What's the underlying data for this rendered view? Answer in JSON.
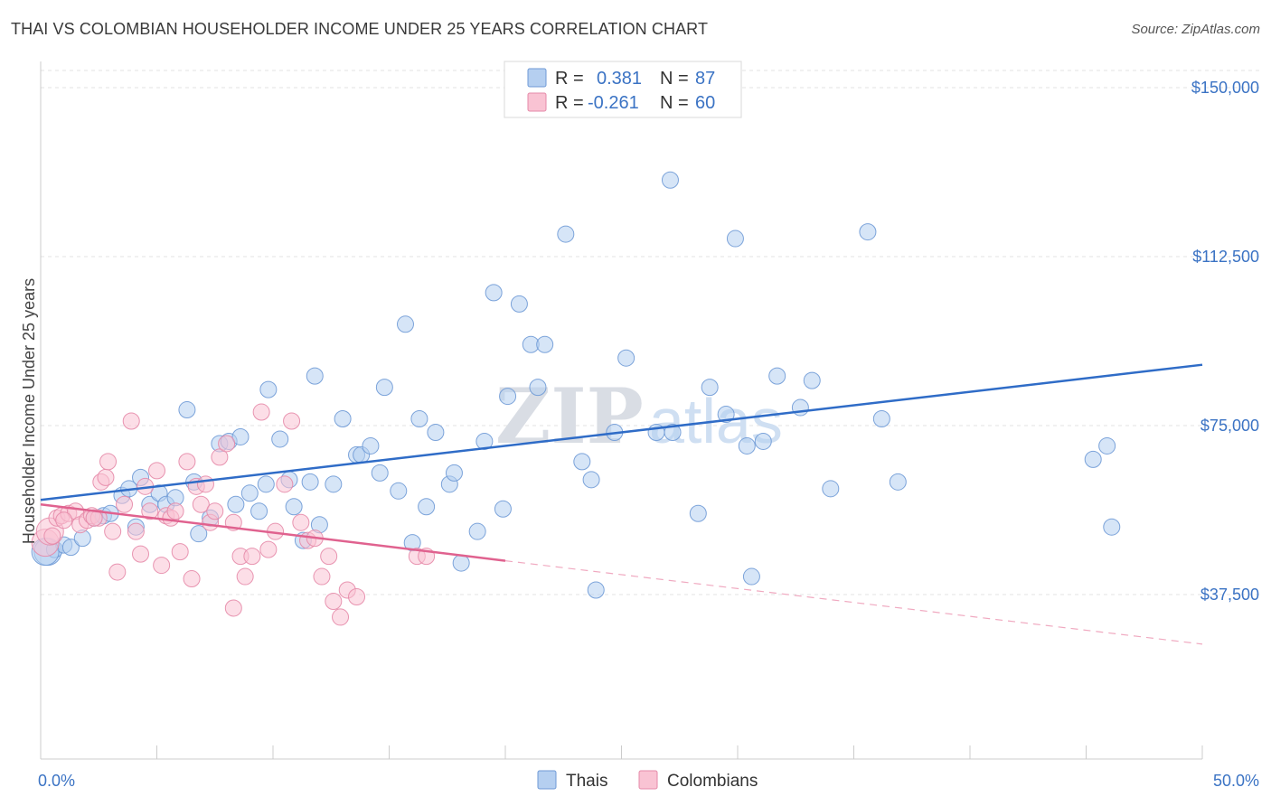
{
  "title": "THAI VS COLOMBIAN HOUSEHOLDER INCOME UNDER 25 YEARS CORRELATION CHART",
  "source": "Source: ZipAtlas.com",
  "watermark": {
    "zip": "ZIP",
    "atlas": "atlas"
  },
  "legend": {
    "r_label": "R =",
    "n_label": "N =",
    "rows": [
      {
        "r": "0.381",
        "n": "87",
        "color": "#b5cff0",
        "stroke": "#6f9ad6"
      },
      {
        "r": "-0.261",
        "n": "60",
        "color": "#f9c3d3",
        "stroke": "#e58aa8"
      }
    ]
  },
  "bottom_legend": [
    "Thais",
    "Colombians"
  ],
  "chart_data": {
    "type": "scatter",
    "title": "THAI VS COLOMBIAN HOUSEHOLDER INCOME UNDER 25 YEARS CORRELATION CHART",
    "xlabel": "",
    "ylabel": "Householder Income Under 25 years",
    "xlim": [
      0,
      50
    ],
    "ylim": [
      0,
      155000
    ],
    "x_tick_labels": [
      "0.0%",
      "50.0%"
    ],
    "y_ticks": [
      37500,
      75000,
      112500,
      150000
    ],
    "y_tick_labels": [
      "$37,500",
      "$75,000",
      "$112,500",
      "$150,000"
    ],
    "grid": true,
    "legend_position": "top-center",
    "series": [
      {
        "name": "Thais",
        "color": "#6f9ad6",
        "fill": "#b5cff0",
        "trend": {
          "x0": 0,
          "y0": 58500,
          "x1": 50,
          "y1": 88500
        },
        "points": [
          [
            0.3,
            47000
          ],
          [
            0.6,
            47500
          ],
          [
            1.0,
            48500
          ],
          [
            1.3,
            48000
          ],
          [
            1.8,
            50000
          ],
          [
            2.3,
            54500
          ],
          [
            2.7,
            55000
          ],
          [
            3.0,
            55500
          ],
          [
            3.5,
            59500
          ],
          [
            3.8,
            61000
          ],
          [
            4.1,
            52500
          ],
          [
            4.3,
            63500
          ],
          [
            4.7,
            57500
          ],
          [
            5.1,
            60000
          ],
          [
            5.4,
            57500
          ],
          [
            5.8,
            59000
          ],
          [
            6.3,
            78500
          ],
          [
            6.6,
            62500
          ],
          [
            6.8,
            51000
          ],
          [
            7.3,
            54500
          ],
          [
            7.7,
            71000
          ],
          [
            8.1,
            71500
          ],
          [
            8.4,
            57500
          ],
          [
            8.6,
            72500
          ],
          [
            9.0,
            60000
          ],
          [
            9.4,
            56000
          ],
          [
            9.7,
            62000
          ],
          [
            9.8,
            83000
          ],
          [
            10.3,
            72000
          ],
          [
            10.7,
            63000
          ],
          [
            10.9,
            57000
          ],
          [
            11.3,
            49500
          ],
          [
            11.6,
            62500
          ],
          [
            11.8,
            86000
          ],
          [
            12.0,
            53000
          ],
          [
            12.6,
            62000
          ],
          [
            13.0,
            76500
          ],
          [
            13.6,
            68500
          ],
          [
            13.8,
            68500
          ],
          [
            14.2,
            70500
          ],
          [
            14.6,
            64500
          ],
          [
            14.8,
            83500
          ],
          [
            15.4,
            60500
          ],
          [
            15.7,
            97500
          ],
          [
            16.0,
            49000
          ],
          [
            16.3,
            76500
          ],
          [
            16.6,
            57000
          ],
          [
            17.0,
            73500
          ],
          [
            17.6,
            62000
          ],
          [
            17.8,
            64500
          ],
          [
            18.1,
            44500
          ],
          [
            18.8,
            51500
          ],
          [
            19.1,
            71500
          ],
          [
            19.5,
            104500
          ],
          [
            19.9,
            56500
          ],
          [
            20.1,
            81500
          ],
          [
            20.6,
            102000
          ],
          [
            21.1,
            93000
          ],
          [
            21.4,
            83500
          ],
          [
            21.7,
            93000
          ],
          [
            22.6,
            117500
          ],
          [
            23.3,
            67000
          ],
          [
            23.7,
            63000
          ],
          [
            23.9,
            38500
          ],
          [
            24.7,
            73500
          ],
          [
            25.2,
            90000
          ],
          [
            26.5,
            73500
          ],
          [
            27.1,
            129500
          ],
          [
            27.2,
            73500
          ],
          [
            28.3,
            55500
          ],
          [
            28.8,
            83500
          ],
          [
            29.5,
            77500
          ],
          [
            29.9,
            116500
          ],
          [
            30.4,
            70500
          ],
          [
            30.6,
            41500
          ],
          [
            31.1,
            71500
          ],
          [
            31.7,
            86000
          ],
          [
            32.7,
            79000
          ],
          [
            33.2,
            85000
          ],
          [
            34.0,
            61000
          ],
          [
            35.6,
            118000
          ],
          [
            36.2,
            76500
          ],
          [
            36.9,
            62500
          ],
          [
            45.3,
            67500
          ],
          [
            45.9,
            70500
          ],
          [
            46.1,
            52500
          ],
          [
            0.2,
            47000
          ]
        ]
      },
      {
        "name": "Colombians",
        "color": "#e58aa8",
        "fill": "#f9c3d3",
        "trend": {
          "x0": 0,
          "y0": 57500,
          "x1": 20,
          "y1": 45000
        },
        "trend_dashed": {
          "x0": 20,
          "y0": 45000,
          "x1": 50,
          "y1": 26500
        },
        "points": [
          [
            0.2,
            49000
          ],
          [
            0.4,
            51500
          ],
          [
            0.7,
            54500
          ],
          [
            0.9,
            55000
          ],
          [
            1.2,
            55500
          ],
          [
            1.5,
            56000
          ],
          [
            1.7,
            53000
          ],
          [
            2.0,
            54000
          ],
          [
            2.2,
            55000
          ],
          [
            2.5,
            54500
          ],
          [
            2.6,
            62500
          ],
          [
            2.8,
            63500
          ],
          [
            2.9,
            67000
          ],
          [
            3.1,
            51500
          ],
          [
            3.3,
            42500
          ],
          [
            3.6,
            57500
          ],
          [
            3.9,
            76000
          ],
          [
            4.1,
            51500
          ],
          [
            4.3,
            46500
          ],
          [
            4.5,
            61500
          ],
          [
            4.7,
            56000
          ],
          [
            5.0,
            65000
          ],
          [
            5.2,
            44000
          ],
          [
            5.4,
            55000
          ],
          [
            5.6,
            54500
          ],
          [
            5.8,
            56000
          ],
          [
            6.0,
            47000
          ],
          [
            6.3,
            67000
          ],
          [
            6.5,
            41000
          ],
          [
            6.7,
            61500
          ],
          [
            6.9,
            57500
          ],
          [
            7.1,
            62000
          ],
          [
            7.3,
            53500
          ],
          [
            7.5,
            56000
          ],
          [
            7.7,
            68000
          ],
          [
            8.0,
            71000
          ],
          [
            8.3,
            53500
          ],
          [
            8.6,
            46000
          ],
          [
            8.8,
            41500
          ],
          [
            9.1,
            46000
          ],
          [
            9.5,
            78000
          ],
          [
            9.8,
            47500
          ],
          [
            10.1,
            51500
          ],
          [
            10.5,
            62000
          ],
          [
            10.8,
            76000
          ],
          [
            11.2,
            53500
          ],
          [
            11.5,
            49500
          ],
          [
            11.8,
            50000
          ],
          [
            12.1,
            41500
          ],
          [
            12.4,
            46000
          ],
          [
            12.6,
            36000
          ],
          [
            12.9,
            32500
          ],
          [
            13.2,
            38500
          ],
          [
            13.6,
            37000
          ],
          [
            8.3,
            34500
          ],
          [
            16.2,
            46000
          ],
          [
            16.6,
            46000
          ],
          [
            2.3,
            54500
          ],
          [
            1.0,
            54000
          ],
          [
            0.5,
            50500
          ]
        ]
      }
    ]
  }
}
